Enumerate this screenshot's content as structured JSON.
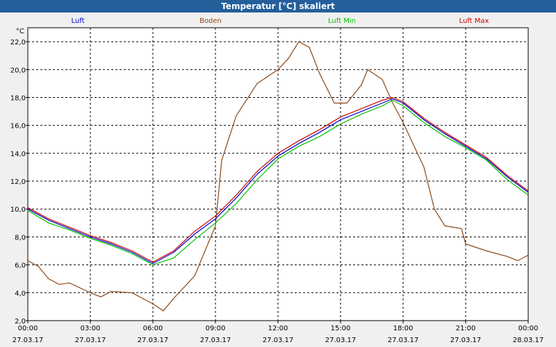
{
  "window": {
    "title": "Temperatur [°C] skaliert"
  },
  "chart_data": {
    "type": "line",
    "title": "Temperatur [°C] skaliert",
    "y_unit": "°C",
    "ylim": [
      2,
      23
    ],
    "yticks": [
      "2,0",
      "4,0",
      "6,0",
      "8,0",
      "10,0",
      "12,0",
      "14,0",
      "16,0",
      "18,0",
      "20,0",
      "22,0"
    ],
    "x_range_hours": [
      0,
      24
    ],
    "xticks": [
      {
        "time": "00:00",
        "date": "27.03.17"
      },
      {
        "time": "03:00",
        "date": "27.03.17"
      },
      {
        "time": "06:00",
        "date": "27.03.17"
      },
      {
        "time": "09:00",
        "date": "27.03.17"
      },
      {
        "time": "12:00",
        "date": "27.03.17"
      },
      {
        "time": "15:00",
        "date": "27.03.17"
      },
      {
        "time": "18:00",
        "date": "27.03.17"
      },
      {
        "time": "21:00",
        "date": "27.03.17"
      },
      {
        "time": "00:00",
        "date": "28.03.17"
      }
    ],
    "grid": true,
    "legend_position": "top",
    "series": [
      {
        "name": "Luft",
        "color": "#0000cc",
        "points": [
          [
            0,
            10.0
          ],
          [
            1,
            9.2
          ],
          [
            2,
            8.6
          ],
          [
            3,
            8.0
          ],
          [
            4,
            7.5
          ],
          [
            5,
            6.9
          ],
          [
            6,
            6.1
          ],
          [
            7,
            6.9
          ],
          [
            8,
            8.2
          ],
          [
            9,
            9.3
          ],
          [
            10,
            10.8
          ],
          [
            11,
            12.5
          ],
          [
            12,
            13.8
          ],
          [
            13,
            14.7
          ],
          [
            14,
            15.5
          ],
          [
            15,
            16.4
          ],
          [
            16,
            17.0
          ],
          [
            17,
            17.6
          ],
          [
            17.5,
            17.9
          ],
          [
            18,
            17.6
          ],
          [
            19,
            16.4
          ],
          [
            20,
            15.4
          ],
          [
            21,
            14.5
          ],
          [
            22,
            13.6
          ],
          [
            23,
            12.3
          ],
          [
            24,
            11.2
          ]
        ]
      },
      {
        "name": "Boden",
        "color": "#8b4513",
        "points": [
          [
            0,
            6.3
          ],
          [
            0.5,
            5.9
          ],
          [
            1,
            5.0
          ],
          [
            1.5,
            4.6
          ],
          [
            2,
            4.7
          ],
          [
            3,
            4.0
          ],
          [
            3.5,
            3.7
          ],
          [
            4,
            4.1
          ],
          [
            5,
            4.0
          ],
          [
            6,
            3.2
          ],
          [
            6.5,
            2.7
          ],
          [
            7,
            3.6
          ],
          [
            8,
            5.2
          ],
          [
            9,
            8.8
          ],
          [
            9.3,
            13.5
          ],
          [
            10,
            16.7
          ],
          [
            11,
            19.0
          ],
          [
            12,
            20.0
          ],
          [
            12.5,
            20.8
          ],
          [
            13,
            22.0
          ],
          [
            13.5,
            21.6
          ],
          [
            14,
            19.7
          ],
          [
            14.7,
            17.6
          ],
          [
            15.3,
            17.6
          ],
          [
            16,
            18.9
          ],
          [
            16.3,
            20.0
          ],
          [
            17,
            19.3
          ],
          [
            17.5,
            17.6
          ],
          [
            18,
            16.2
          ],
          [
            19,
            13.0
          ],
          [
            19.5,
            10.0
          ],
          [
            20,
            8.8
          ],
          [
            20.8,
            8.6
          ],
          [
            21,
            7.5
          ],
          [
            22,
            7.0
          ],
          [
            23,
            6.6
          ],
          [
            23.5,
            6.3
          ],
          [
            24,
            6.7
          ]
        ]
      },
      {
        "name": "Luft Min",
        "color": "#00c000",
        "points": [
          [
            0,
            9.9
          ],
          [
            1,
            9.0
          ],
          [
            2,
            8.5
          ],
          [
            3,
            7.9
          ],
          [
            4,
            7.4
          ],
          [
            5,
            6.8
          ],
          [
            6,
            6.0
          ],
          [
            7,
            6.5
          ],
          [
            8,
            7.8
          ],
          [
            9,
            9.0
          ],
          [
            10,
            10.4
          ],
          [
            11,
            12.1
          ],
          [
            12,
            13.6
          ],
          [
            13,
            14.5
          ],
          [
            14,
            15.2
          ],
          [
            15,
            16.1
          ],
          [
            16,
            16.8
          ],
          [
            17,
            17.4
          ],
          [
            17.5,
            17.8
          ],
          [
            18,
            17.4
          ],
          [
            19,
            16.2
          ],
          [
            20,
            15.2
          ],
          [
            21,
            14.4
          ],
          [
            22,
            13.5
          ],
          [
            23,
            12.1
          ],
          [
            24,
            11.0
          ]
        ]
      },
      {
        "name": "Luft Max",
        "color": "#cc0000",
        "points": [
          [
            0,
            10.1
          ],
          [
            1,
            9.3
          ],
          [
            2,
            8.7
          ],
          [
            3,
            8.1
          ],
          [
            4,
            7.6
          ],
          [
            5,
            7.0
          ],
          [
            6,
            6.2
          ],
          [
            7,
            7.0
          ],
          [
            8,
            8.4
          ],
          [
            9,
            9.5
          ],
          [
            10,
            11.0
          ],
          [
            11,
            12.7
          ],
          [
            12,
            14.0
          ],
          [
            13,
            14.9
          ],
          [
            14,
            15.7
          ],
          [
            15,
            16.6
          ],
          [
            16,
            17.2
          ],
          [
            17,
            17.8
          ],
          [
            17.5,
            18.0
          ],
          [
            18,
            17.7
          ],
          [
            19,
            16.5
          ],
          [
            20,
            15.5
          ],
          [
            21,
            14.6
          ],
          [
            22,
            13.7
          ],
          [
            23,
            12.4
          ],
          [
            24,
            11.3
          ]
        ]
      }
    ]
  }
}
